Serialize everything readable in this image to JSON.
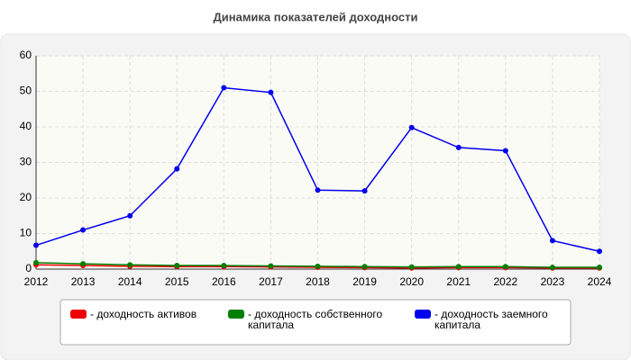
{
  "chart_data": {
    "type": "line",
    "title": "Динамика показателей доходности",
    "x": [
      2012,
      2013,
      2014,
      2015,
      2016,
      2017,
      2018,
      2019,
      2020,
      2021,
      2022,
      2023,
      2024
    ],
    "xlim": [
      2012,
      2024
    ],
    "xticks": [
      2012,
      2013,
      2014,
      2015,
      2016,
      2017,
      2018,
      2019,
      2020,
      2021,
      2022,
      2023,
      2024
    ],
    "ylim": [
      0,
      60
    ],
    "yticks": [
      0,
      10,
      20,
      30,
      40,
      50,
      60
    ],
    "grid": true,
    "series": [
      {
        "name": "- доходность активов",
        "color": "#ee0000",
        "values": [
          1.2,
          1.0,
          0.8,
          0.7,
          0.7,
          0.6,
          0.5,
          0.4,
          0.3,
          0.4,
          0.4,
          0.3,
          0.3
        ]
      },
      {
        "name": "- доходность собственного капитала",
        "color": "#008000",
        "values": [
          1.8,
          1.5,
          1.2,
          1.0,
          1.0,
          0.9,
          0.8,
          0.7,
          0.6,
          0.7,
          0.7,
          0.5,
          0.5
        ]
      },
      {
        "name": "- доходность заемного капитала",
        "color": "#0000ee",
        "values": [
          6.7,
          11,
          15,
          28.2,
          51,
          49.7,
          22.2,
          22,
          39.8,
          34.2,
          33.3,
          8,
          5
        ]
      }
    ]
  }
}
